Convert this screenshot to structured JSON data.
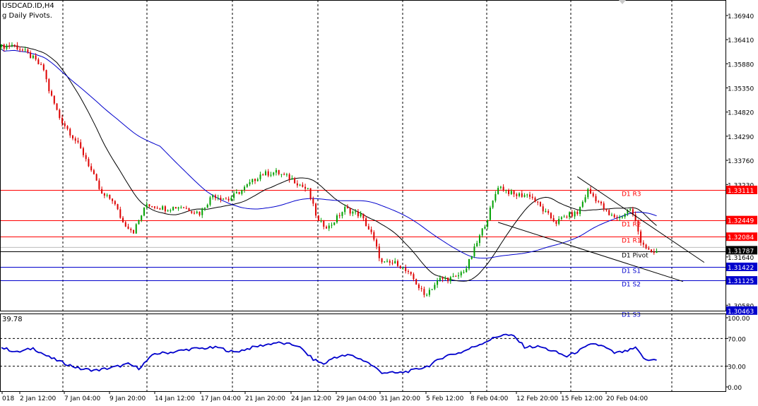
{
  "window": {
    "symbol": "USDCAD.ID,H4",
    "indicator": "g Daily Pivots."
  },
  "oscillator": {
    "value_label": "39.78",
    "levels": [
      100,
      70,
      30,
      0
    ],
    "level_labels": [
      "100.00",
      "70.00",
      "30.00",
      "0.00"
    ],
    "color": "#0000cc"
  },
  "colors": {
    "bull": "#00a000",
    "bear": "#dd0000",
    "ma_long": "#0000cc",
    "ma_short": "#000000",
    "resistance": "#ff0000",
    "support": "#0000cc",
    "pivot": "#000000"
  },
  "chart_data": {
    "type": "candlestick",
    "x_ticks": [
      "018",
      "2 Jan 12:00",
      "7 Jan 04:00",
      "9 Jan 20:00",
      "14 Jan 12:00",
      "17 Jan 04:00",
      "21 Jan 20:00",
      "24 Jan 12:00",
      "29 Jan 04:00",
      "31 Jan 20:00",
      "5 Feb 12:00",
      "8 Feb 04:00",
      "12 Feb 20:00",
      "15 Feb 12:00",
      "20 Feb 04:00"
    ],
    "y_ticks": [
      1.3694,
      1.3641,
      1.3588,
      1.3535,
      1.3482,
      1.3429,
      1.3376,
      1.3323,
      1.3164,
      1.3058
    ],
    "y_tick_labels": [
      "1.36940",
      "1.36410",
      "1.35880",
      "1.35350",
      "1.34820",
      "1.34290",
      "1.33760",
      "1.33230",
      "1.31640",
      "1.30580"
    ],
    "ylim": [
      1.3046,
      1.3728
    ],
    "price_tags": [
      {
        "value": 1.33111,
        "label": "1.33111",
        "kind": "resistance"
      },
      {
        "value": 1.32449,
        "label": "1.32449",
        "kind": "resistance"
      },
      {
        "value": 1.32084,
        "label": "1.32084",
        "kind": "resistance"
      },
      {
        "value": 1.31787,
        "label": "1.31787",
        "kind": "current"
      },
      {
        "value": 1.31422,
        "label": "1.31422",
        "kind": "support"
      },
      {
        "value": 1.31125,
        "label": "1.31125",
        "kind": "support"
      },
      {
        "value": 1.30463,
        "label": "1.30463",
        "kind": "support"
      }
    ],
    "pivots": [
      {
        "name": "D1 R3",
        "value": 1.33111,
        "kind": "resistance"
      },
      {
        "name": "D1 R2",
        "value": 1.32449,
        "kind": "resistance"
      },
      {
        "name": "D1 R1",
        "value": 1.32084,
        "kind": "resistance"
      },
      {
        "name": "D1 Pivot",
        "value": 1.3176,
        "kind": "pivot"
      },
      {
        "name": "D1 S1",
        "value": 1.31422,
        "kind": "support"
      },
      {
        "name": "D1 S2",
        "value": 1.31125,
        "kind": "support"
      },
      {
        "name": "D1 S3",
        "value": 1.30463,
        "kind": "support"
      }
    ],
    "price_keypoints": [
      [
        0,
        1.3625
      ],
      [
        4,
        1.363
      ],
      [
        8,
        1.3618
      ],
      [
        12,
        1.36
      ],
      [
        16,
        1.3575
      ],
      [
        18,
        1.353
      ],
      [
        22,
        1.347
      ],
      [
        28,
        1.342
      ],
      [
        32,
        1.338
      ],
      [
        38,
        1.33
      ],
      [
        42,
        1.329
      ],
      [
        46,
        1.324
      ],
      [
        50,
        1.322
      ],
      [
        55,
        1.328
      ],
      [
        62,
        1.327
      ],
      [
        68,
        1.3275
      ],
      [
        75,
        1.326
      ],
      [
        80,
        1.33
      ],
      [
        86,
        1.329
      ],
      [
        92,
        1.3315
      ],
      [
        98,
        1.3345
      ],
      [
        104,
        1.335
      ],
      [
        110,
        1.3335
      ],
      [
        116,
        1.331
      ],
      [
        120,
        1.324
      ],
      [
        124,
        1.323
      ],
      [
        130,
        1.327
      ],
      [
        136,
        1.3255
      ],
      [
        140,
        1.3215
      ],
      [
        144,
        1.315
      ],
      [
        150,
        1.315
      ],
      [
        156,
        1.3115
      ],
      [
        160,
        1.308
      ],
      [
        166,
        1.3115
      ],
      [
        172,
        1.3118
      ],
      [
        176,
        1.314
      ],
      [
        180,
        1.3195
      ],
      [
        184,
        1.325
      ],
      [
        188,
        1.332
      ],
      [
        194,
        1.33
      ],
      [
        200,
        1.33
      ],
      [
        206,
        1.326
      ],
      [
        210,
        1.324
      ],
      [
        214,
        1.3255
      ],
      [
        218,
        1.326
      ],
      [
        222,
        1.331
      ],
      [
        226,
        1.3285
      ],
      [
        230,
        1.3255
      ],
      [
        234,
        1.325
      ],
      [
        238,
        1.327
      ],
      [
        240,
        1.324
      ],
      [
        242,
        1.32
      ],
      [
        246,
        1.317
      ],
      [
        248,
        1.3175
      ]
    ],
    "osc_keypoints": [
      [
        0,
        57
      ],
      [
        6,
        50
      ],
      [
        12,
        56
      ],
      [
        18,
        43
      ],
      [
        24,
        34
      ],
      [
        30,
        26
      ],
      [
        36,
        24
      ],
      [
        42,
        28
      ],
      [
        48,
        33
      ],
      [
        52,
        27
      ],
      [
        58,
        48
      ],
      [
        64,
        50
      ],
      [
        72,
        55
      ],
      [
        82,
        57
      ],
      [
        88,
        50
      ],
      [
        96,
        58
      ],
      [
        104,
        64
      ],
      [
        112,
        60
      ],
      [
        118,
        40
      ],
      [
        122,
        33
      ],
      [
        126,
        43
      ],
      [
        132,
        46
      ],
      [
        138,
        37
      ],
      [
        144,
        21
      ],
      [
        150,
        20
      ],
      [
        156,
        24
      ],
      [
        162,
        31
      ],
      [
        168,
        45
      ],
      [
        174,
        50
      ],
      [
        180,
        60
      ],
      [
        186,
        70
      ],
      [
        190,
        76
      ],
      [
        194,
        73
      ],
      [
        198,
        58
      ],
      [
        204,
        58
      ],
      [
        210,
        50
      ],
      [
        214,
        44
      ],
      [
        220,
        55
      ],
      [
        224,
        63
      ],
      [
        228,
        58
      ],
      [
        232,
        49
      ],
      [
        236,
        51
      ],
      [
        240,
        56
      ],
      [
        244,
        38
      ],
      [
        248,
        40
      ]
    ],
    "trendlines": [
      {
        "from": [
          218,
          1.334
        ],
        "to": [
          266,
          1.3152
        ]
      },
      {
        "from": [
          188,
          1.324
        ],
        "to": [
          258,
          1.311
        ]
      }
    ]
  }
}
